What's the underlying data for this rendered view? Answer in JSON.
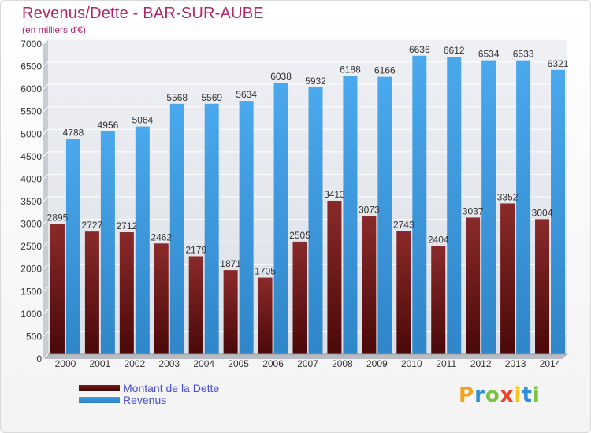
{
  "header": {
    "title": "Revenus/Dette - BAR-SUR-AUBE",
    "subtitle": "(en milliers d'€)"
  },
  "legend": [
    {
      "label": "Montant de la Dette",
      "color": "#7a1a1a"
    },
    {
      "label": "Revenus",
      "color": "#3f9ee6"
    }
  ],
  "logo": {
    "text": "Proxiti",
    "letters": [
      {
        "ch": "P",
        "color": "#f5a21b"
      },
      {
        "ch": "r",
        "color": "#2f8fd8"
      },
      {
        "ch": "o",
        "color": "#7cc242"
      },
      {
        "ch": "x",
        "color": "#e9452b"
      },
      {
        "ch": "i",
        "color": "#f5c518"
      },
      {
        "ch": "t",
        "color": "#2f8fd8"
      },
      {
        "ch": "i",
        "color": "#7cc242"
      }
    ]
  },
  "chart_data": {
    "type": "bar",
    "title": "Revenus/Dette - BAR-SUR-AUBE",
    "subtitle": "(en milliers d'€)",
    "categories": [
      "2000",
      "2001",
      "2002",
      "2003",
      "2004",
      "2005",
      "2006",
      "2007",
      "2008",
      "2009",
      "2010",
      "2011",
      "2012",
      "2013",
      "2014"
    ],
    "series": [
      {
        "name": "Montant de la Dette",
        "color": "#7a1a1a",
        "values": [
          2895,
          2727,
          2712,
          2462,
          2179,
          1871,
          1705,
          2505,
          3413,
          3073,
          2743,
          2404,
          3037,
          3352,
          3004
        ],
        "labels": [
          "2895",
          "2727",
          "2712",
          "2462",
          "2179",
          "1871",
          "1705",
          "2505",
          "3413",
          "3073",
          "2743",
          "2404",
          "3037",
          "3352",
          "3004"
        ]
      },
      {
        "name": "Revenus",
        "color": "#3f9ee6",
        "values": [
          4788,
          4956,
          5064,
          5568,
          5569,
          5634,
          6038,
          5932,
          6188,
          6166,
          6636,
          6612,
          6534,
          6533,
          6321
        ],
        "labels": [
          "4788",
          "4956",
          "5064",
          "5568",
          "5569",
          "5634",
          "6038",
          "5932",
          "6188",
          "6166",
          "6636",
          "6612",
          "6534",
          "6533",
          "6321"
        ]
      }
    ],
    "ylim": [
      0,
      7000
    ],
    "yticks": [
      "0",
      "500",
      "1000",
      "1500",
      "2000",
      "2500",
      "3000",
      "3500",
      "4000",
      "4500",
      "5000",
      "5500",
      "6000",
      "6500",
      "7000"
    ],
    "grid": true,
    "legend_position": "bottom-left"
  }
}
